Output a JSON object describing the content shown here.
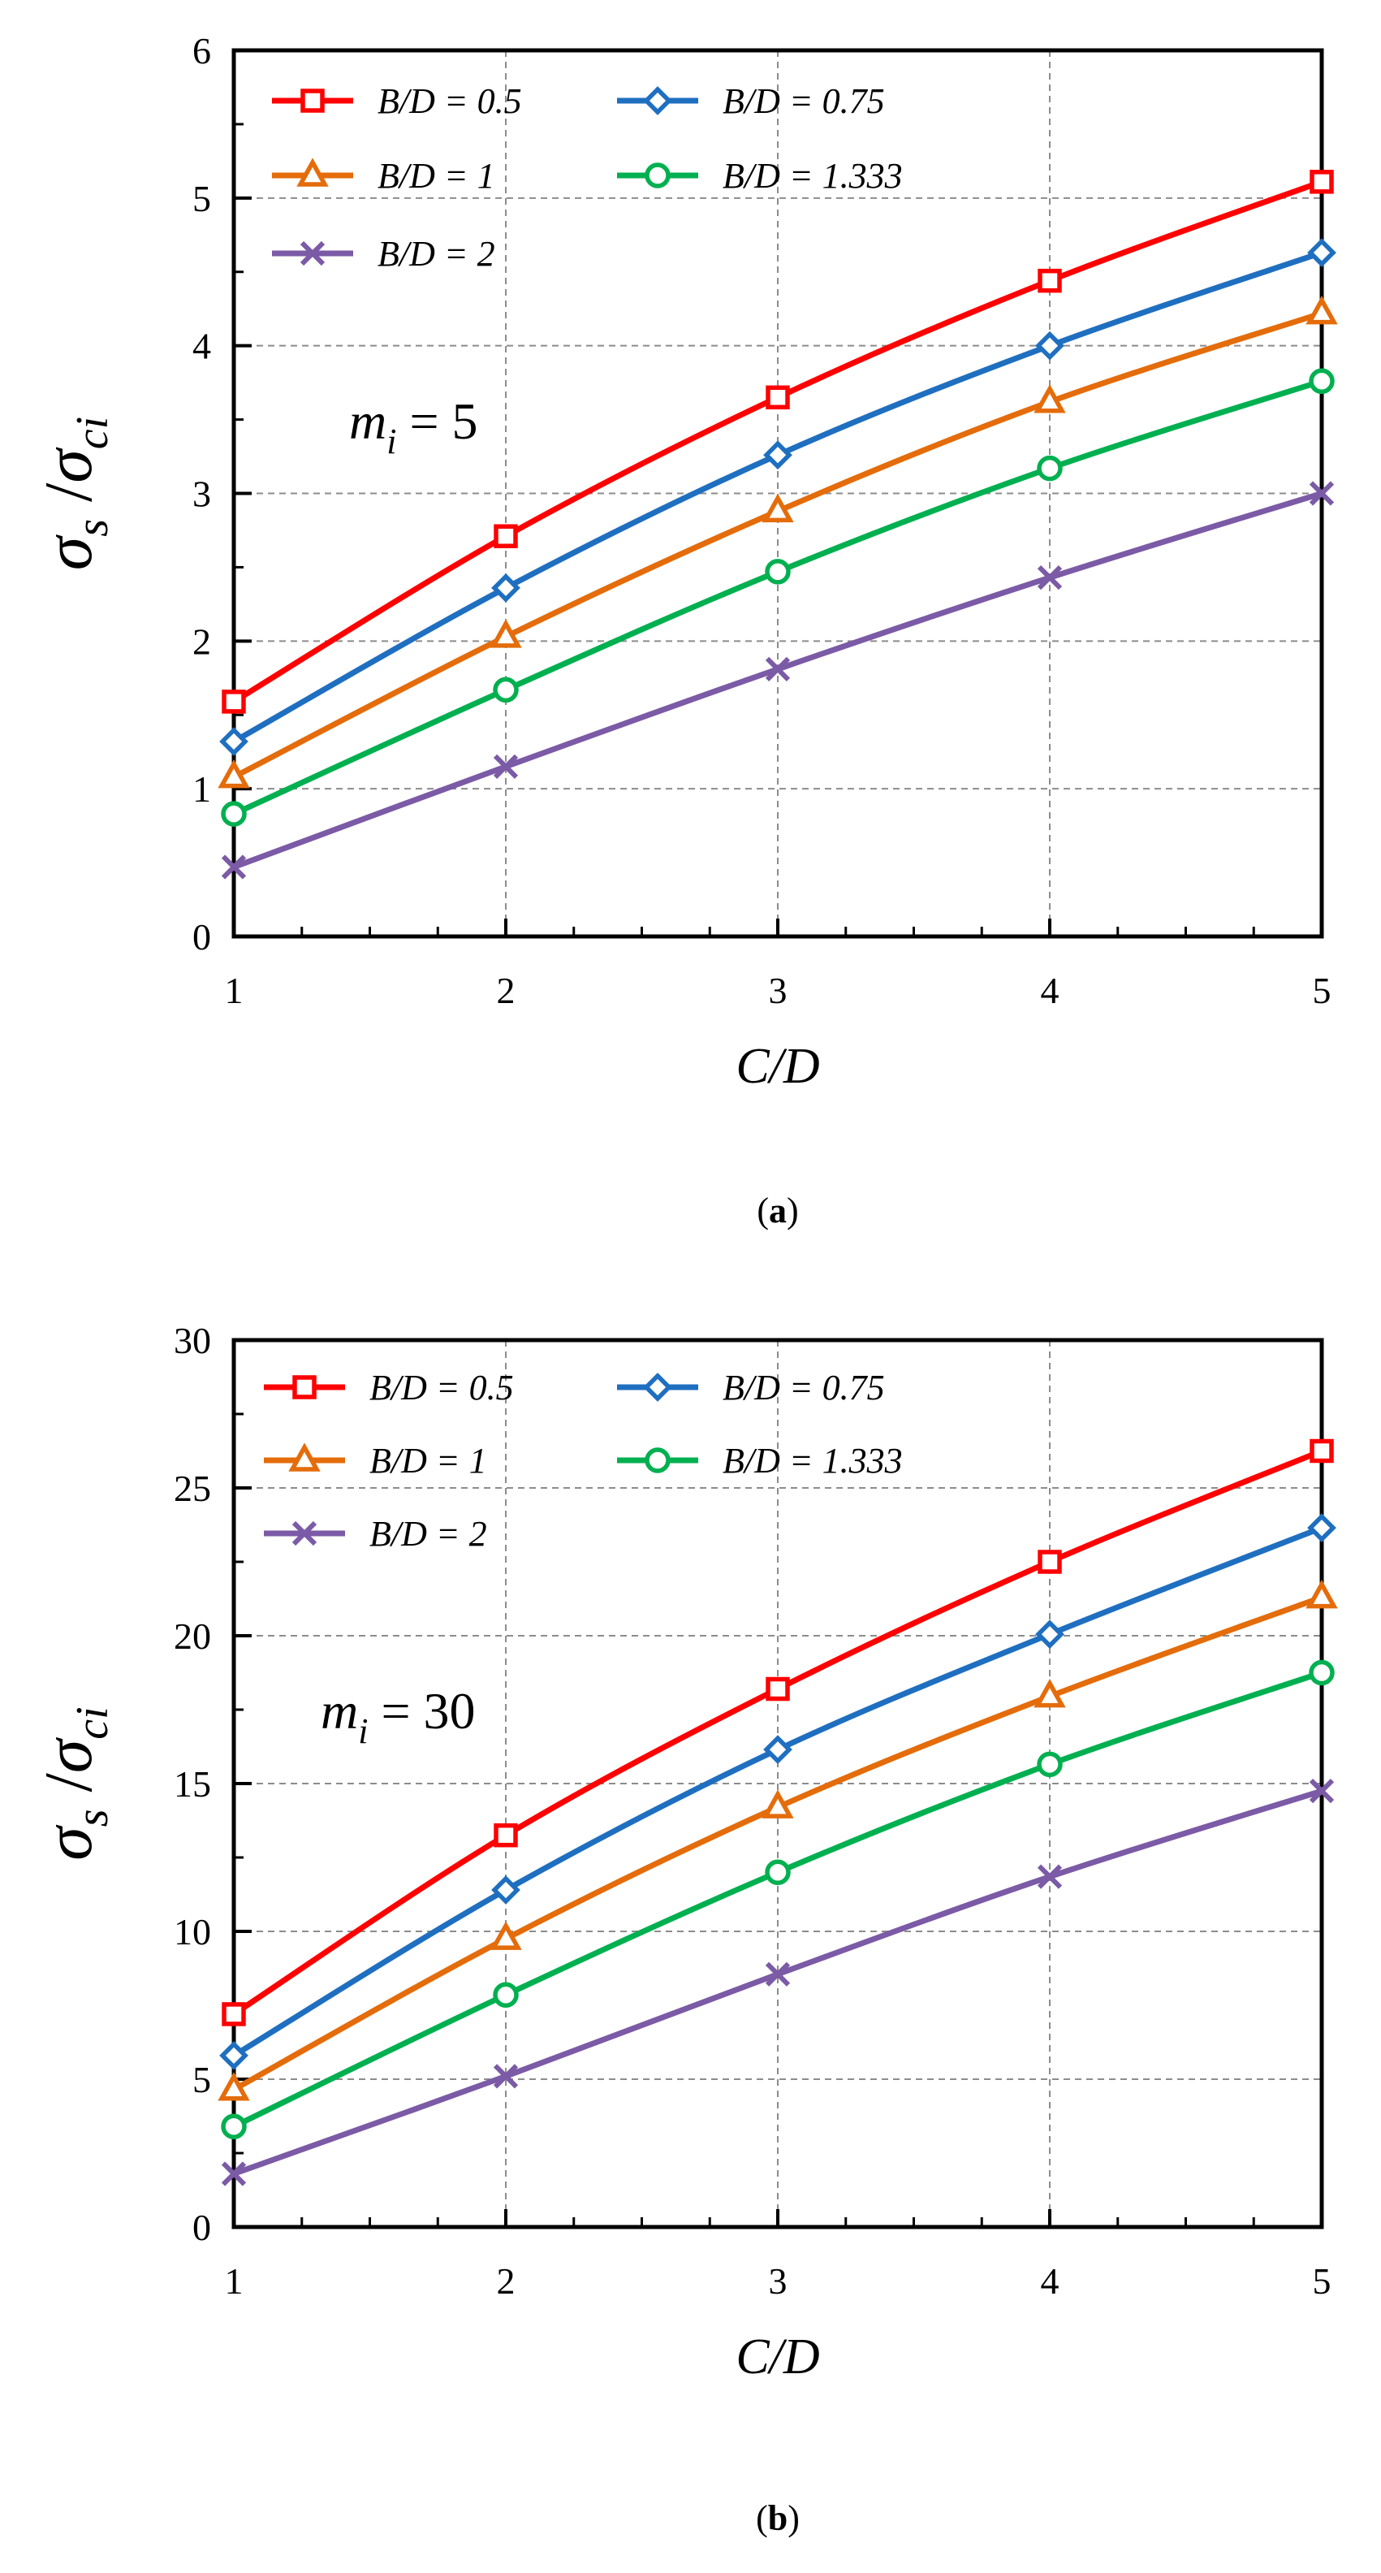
{
  "chart_data": [
    {
      "type": "line",
      "panel": "a",
      "caption": "a",
      "annotation": {
        "m": "m",
        "sub": "i",
        "rest": " = 5"
      },
      "ylabel": {
        "sigma1": "σ",
        "sub1": "s",
        "slash": " /",
        "sigma2": "σ",
        "sub2": "ci"
      },
      "xlabel": "C/D",
      "xlim": [
        1,
        5
      ],
      "ylim": [
        0,
        6
      ],
      "xticks": [
        1,
        2,
        3,
        4,
        5
      ],
      "yticks": [
        0,
        1,
        2,
        3,
        4,
        5,
        6
      ],
      "grid": true,
      "legend_position": "top-left",
      "x": [
        1,
        2,
        3,
        4,
        5
      ],
      "series": [
        {
          "name": "B/D = 0.5",
          "color": "#ff0000",
          "marker": "square",
          "values": [
            1.59,
            2.71,
            3.65,
            4.44,
            5.11
          ]
        },
        {
          "name": "B/D = 0.75",
          "color": "#1f6fc0",
          "marker": "diamond",
          "values": [
            1.32,
            2.36,
            3.26,
            4.0,
            4.63
          ]
        },
        {
          "name": "B/D = 1",
          "color": "#e46c0a",
          "marker": "triangle",
          "values": [
            1.08,
            2.03,
            2.88,
            3.62,
            4.22
          ]
        },
        {
          "name": "B/D = 1.333",
          "color": "#00b050",
          "marker": "circle",
          "values": [
            0.83,
            1.67,
            2.47,
            3.17,
            3.76
          ]
        },
        {
          "name": "B/D = 2",
          "color": "#7b5aa6",
          "marker": "x",
          "values": [
            0.47,
            1.15,
            1.81,
            2.43,
            3.0
          ]
        }
      ]
    },
    {
      "type": "line",
      "panel": "b",
      "caption": "b",
      "annotation": {
        "m": "m",
        "sub": "i",
        "rest": " = 30"
      },
      "ylabel": {
        "sigma1": "σ",
        "sub1": "s",
        "slash": " /",
        "sigma2": "σ",
        "sub2": "ci"
      },
      "xlabel": "C/D",
      "xlim": [
        1,
        5
      ],
      "ylim": [
        0,
        30
      ],
      "xticks": [
        1,
        2,
        3,
        4,
        5
      ],
      "yticks": [
        0,
        5,
        10,
        15,
        20,
        25,
        30
      ],
      "grid": true,
      "legend_position": "top-left",
      "x": [
        1,
        2,
        3,
        4,
        5
      ],
      "series": [
        {
          "name": "B/D = 0.5",
          "color": "#ff0000",
          "marker": "square",
          "values": [
            7.2,
            13.25,
            18.2,
            22.5,
            26.25
          ]
        },
        {
          "name": "B/D = 0.75",
          "color": "#1f6fc0",
          "marker": "diamond",
          "values": [
            5.8,
            11.4,
            16.15,
            20.05,
            23.65
          ]
        },
        {
          "name": "B/D = 1",
          "color": "#e46c0a",
          "marker": "triangle",
          "values": [
            4.65,
            9.75,
            14.2,
            17.95,
            21.3
          ]
        },
        {
          "name": "B/D = 1.333",
          "color": "#00b050",
          "marker": "circle",
          "values": [
            3.4,
            7.85,
            12.0,
            15.65,
            18.75
          ]
        },
        {
          "name": "B/D = 2",
          "color": "#7b5aa6",
          "marker": "x",
          "values": [
            1.8,
            5.1,
            8.55,
            11.85,
            14.75
          ]
        }
      ]
    }
  ]
}
